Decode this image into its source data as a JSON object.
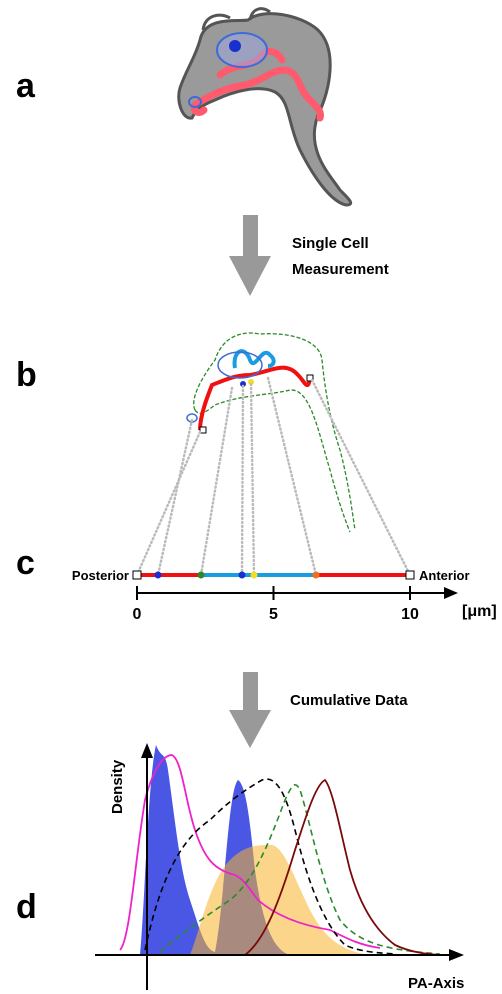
{
  "panel_labels": [
    "a",
    "b",
    "c",
    "d"
  ],
  "step1": {
    "lines": [
      "Single Cell",
      "Measurement"
    ]
  },
  "scale": {
    "left": "Posterior",
    "right": "Anterior",
    "xlim": [
      0,
      10
    ],
    "ticks": [
      0,
      5,
      10
    ],
    "unit": "[μm]"
  },
  "step2": "Cumulative Data",
  "plot": {
    "ylabel": "Density",
    "xlabel": "PA-Axis"
  }
}
